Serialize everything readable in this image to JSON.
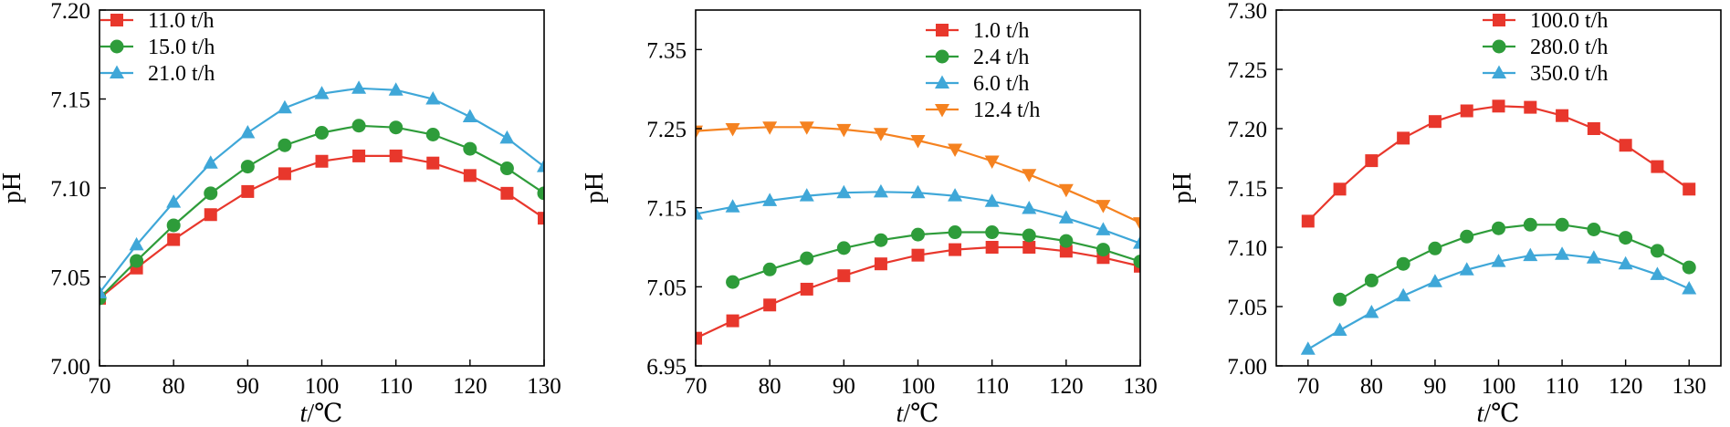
{
  "figure": {
    "panels": [
      {
        "ylabel": "pH",
        "xlabel_italic": "t",
        "xlabel_rest": "/℃"
      },
      {
        "ylabel": "pH",
        "xlabel_italic": "t",
        "xlabel_rest": "/℃"
      },
      {
        "ylabel": "pH",
        "xlabel_italic": "t",
        "xlabel_rest": "/℃"
      }
    ]
  },
  "chart_data": [
    {
      "type": "line",
      "xlabel": "t/℃",
      "ylabel": "pH",
      "xlim": [
        70,
        130
      ],
      "ylim": [
        7.0,
        7.2
      ],
      "xticks": [
        "70",
        "80",
        "90",
        "100",
        "110",
        "120",
        "130"
      ],
      "yticks": [
        "7.00",
        "7.05",
        "7.10",
        "7.15",
        "7.20"
      ],
      "grid": false,
      "legend_position": "top-left",
      "x": [
        70,
        75,
        80,
        85,
        90,
        95,
        100,
        105,
        110,
        115,
        120,
        125,
        130
      ],
      "series": [
        {
          "name": "11.0 t/h",
          "color": "#e8372c",
          "marker": "square",
          "x": [
            70,
            75,
            80,
            85,
            90,
            95,
            100,
            105,
            110,
            115,
            120,
            125,
            130
          ],
          "values": [
            7.038,
            7.055,
            7.071,
            7.085,
            7.098,
            7.108,
            7.115,
            7.118,
            7.118,
            7.114,
            7.107,
            7.097,
            7.083
          ]
        },
        {
          "name": "15.0 t/h",
          "color": "#2e9c3a",
          "marker": "circle",
          "x": [
            70,
            75,
            80,
            85,
            90,
            95,
            100,
            105,
            110,
            115,
            120,
            125,
            130
          ],
          "values": [
            7.038,
            7.059,
            7.079,
            7.097,
            7.112,
            7.124,
            7.131,
            7.135,
            7.134,
            7.13,
            7.122,
            7.111,
            7.097
          ]
        },
        {
          "name": "21.0 t/h",
          "color": "#3fa7d8",
          "marker": "triangle-up",
          "x": [
            70,
            75,
            80,
            85,
            90,
            95,
            100,
            105,
            110,
            115,
            120,
            125,
            130
          ],
          "values": [
            7.041,
            7.068,
            7.092,
            7.114,
            7.131,
            7.145,
            7.153,
            7.156,
            7.155,
            7.15,
            7.14,
            7.128,
            7.112
          ]
        }
      ]
    },
    {
      "type": "line",
      "xlabel": "t/℃",
      "ylabel": "pH",
      "xlim": [
        70,
        130
      ],
      "ylim": [
        6.95,
        7.4
      ],
      "xticks": [
        "70",
        "80",
        "90",
        "100",
        "110",
        "120",
        "130"
      ],
      "yticks": [
        "6.95",
        "7.05",
        "7.15",
        "7.25",
        "7.35"
      ],
      "grid": false,
      "legend_position": "top-right",
      "series": [
        {
          "name": "1.0 t/h",
          "color": "#e8372c",
          "marker": "square",
          "x": [
            70,
            75,
            80,
            85,
            90,
            95,
            100,
            105,
            110,
            115,
            120,
            125,
            130
          ],
          "values": [
            6.985,
            7.007,
            7.027,
            7.047,
            7.064,
            7.079,
            7.09,
            7.097,
            7.1,
            7.1,
            7.095,
            7.087,
            7.076
          ]
        },
        {
          "name": "2.4 t/h",
          "color": "#2e9c3a",
          "marker": "circle",
          "x": [
            75,
            80,
            85,
            90,
            95,
            100,
            105,
            110,
            115,
            120,
            125,
            130
          ],
          "values": [
            7.056,
            7.072,
            7.086,
            7.099,
            7.109,
            7.116,
            7.119,
            7.119,
            7.115,
            7.108,
            7.097,
            7.082
          ]
        },
        {
          "name": "6.0 t/h",
          "color": "#3fa7d8",
          "marker": "triangle-up",
          "x": [
            70,
            75,
            80,
            85,
            90,
            95,
            100,
            105,
            110,
            115,
            120,
            125,
            130
          ],
          "values": [
            7.142,
            7.151,
            7.159,
            7.165,
            7.169,
            7.17,
            7.169,
            7.165,
            7.158,
            7.149,
            7.137,
            7.122,
            7.105
          ]
        },
        {
          "name": "12.4 t/h",
          "color": "#f58220",
          "marker": "triangle-down",
          "x": [
            70,
            75,
            80,
            85,
            90,
            95,
            100,
            105,
            110,
            115,
            120,
            125,
            130
          ],
          "values": [
            7.247,
            7.25,
            7.252,
            7.252,
            7.249,
            7.244,
            7.235,
            7.224,
            7.209,
            7.192,
            7.173,
            7.153,
            7.131
          ]
        }
      ]
    },
    {
      "type": "line",
      "xlabel": "t/℃",
      "ylabel": "pH",
      "xlim": [
        65,
        135
      ],
      "ylim": [
        7.0,
        7.3
      ],
      "xticks": [
        "70",
        "80",
        "90",
        "100",
        "110",
        "120",
        "130"
      ],
      "yticks": [
        "7.00",
        "7.05",
        "7.10",
        "7.15",
        "7.20",
        "7.25",
        "7.30"
      ],
      "grid": false,
      "legend_position": "top-right",
      "series": [
        {
          "name": "100.0 t/h",
          "color": "#e8372c",
          "marker": "square",
          "x": [
            70,
            75,
            80,
            85,
            90,
            95,
            100,
            105,
            110,
            115,
            120,
            125,
            130
          ],
          "values": [
            7.122,
            7.149,
            7.173,
            7.192,
            7.206,
            7.215,
            7.219,
            7.218,
            7.211,
            7.2,
            7.186,
            7.168,
            7.149
          ]
        },
        {
          "name": "280.0 t/h",
          "color": "#2e9c3a",
          "marker": "circle",
          "x": [
            75,
            80,
            85,
            90,
            95,
            100,
            105,
            110,
            115,
            120,
            125,
            130
          ],
          "values": [
            7.056,
            7.072,
            7.086,
            7.099,
            7.109,
            7.116,
            7.119,
            7.119,
            7.115,
            7.108,
            7.097,
            7.083
          ]
        },
        {
          "name": "350.0 t/h",
          "color": "#3fa7d8",
          "marker": "triangle-up",
          "x": [
            70,
            75,
            80,
            85,
            90,
            95,
            100,
            105,
            110,
            115,
            120,
            125,
            130
          ],
          "values": [
            7.014,
            7.03,
            7.045,
            7.059,
            7.071,
            7.081,
            7.088,
            7.093,
            7.094,
            7.091,
            7.086,
            7.077,
            7.065
          ]
        }
      ]
    }
  ]
}
